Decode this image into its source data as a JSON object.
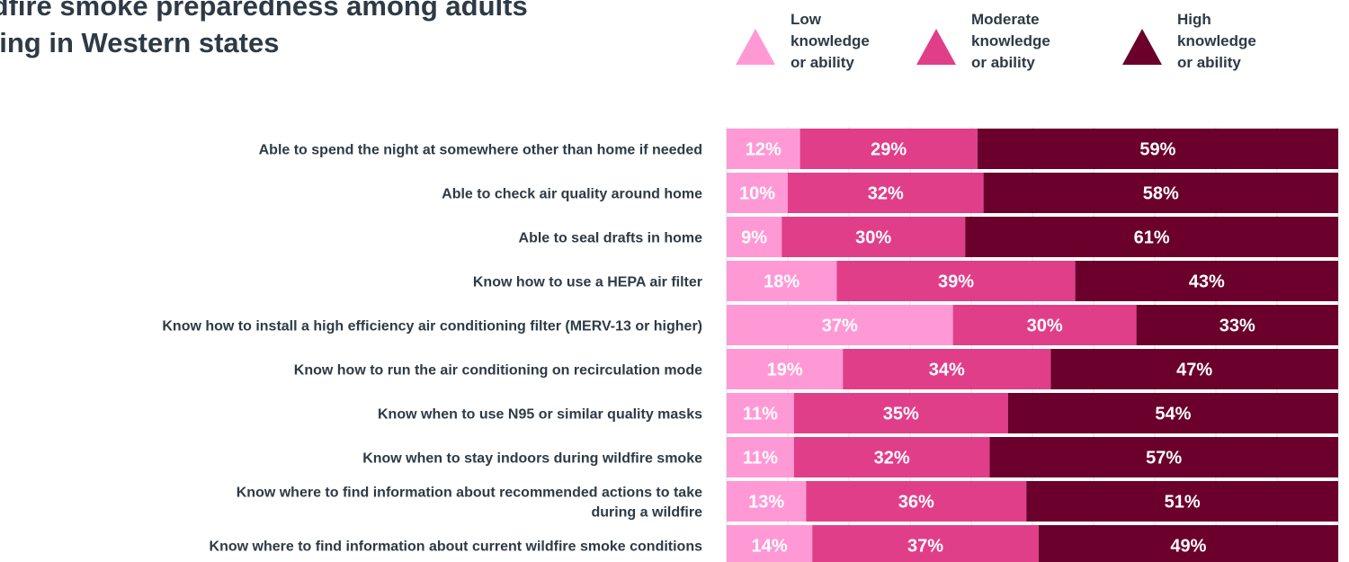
{
  "chart_data": {
    "type": "bar",
    "orientation": "horizontal",
    "stacked": true,
    "percent_scale": true,
    "title": "ldfire smoke preparedness among adults\nving in Western states",
    "xlim": [
      0,
      100
    ],
    "grid": true,
    "legend_position": "top-right",
    "categories": [
      [
        "Able to spend the night at somewhere other than home if needed"
      ],
      [
        "Able to check air quality around home"
      ],
      [
        "Able to seal drafts in home"
      ],
      [
        "Know how to use a HEPA air filter"
      ],
      [
        "Know how to install a high efficiency air conditioning filter (MERV-13 or higher)"
      ],
      [
        "Know how to run the air conditioning on recirculation mode"
      ],
      [
        "Know when to use N95 or similar quality masks"
      ],
      [
        "Know when to stay indoors during wildfire smoke"
      ],
      [
        "Know where to find information about recommended actions to take",
        "during a wildfire"
      ],
      [
        "Know where to find information about current wildfire smoke conditions"
      ]
    ],
    "series": [
      {
        "name": "Low\nknowledge\nor ability",
        "color": "#ff99d6",
        "values": [
          12,
          10,
          9,
          18,
          37,
          19,
          11,
          11,
          13,
          14
        ]
      },
      {
        "name": "Moderate\nknowledge\nor ability",
        "color": "#e13e8a",
        "values": [
          29,
          32,
          30,
          39,
          30,
          34,
          35,
          32,
          36,
          37
        ]
      },
      {
        "name": "High\nknowledge\nor ability",
        "color": "#6a002b",
        "values": [
          59,
          58,
          61,
          43,
          33,
          47,
          54,
          57,
          51,
          49
        ]
      }
    ],
    "value_suffix": "%"
  }
}
